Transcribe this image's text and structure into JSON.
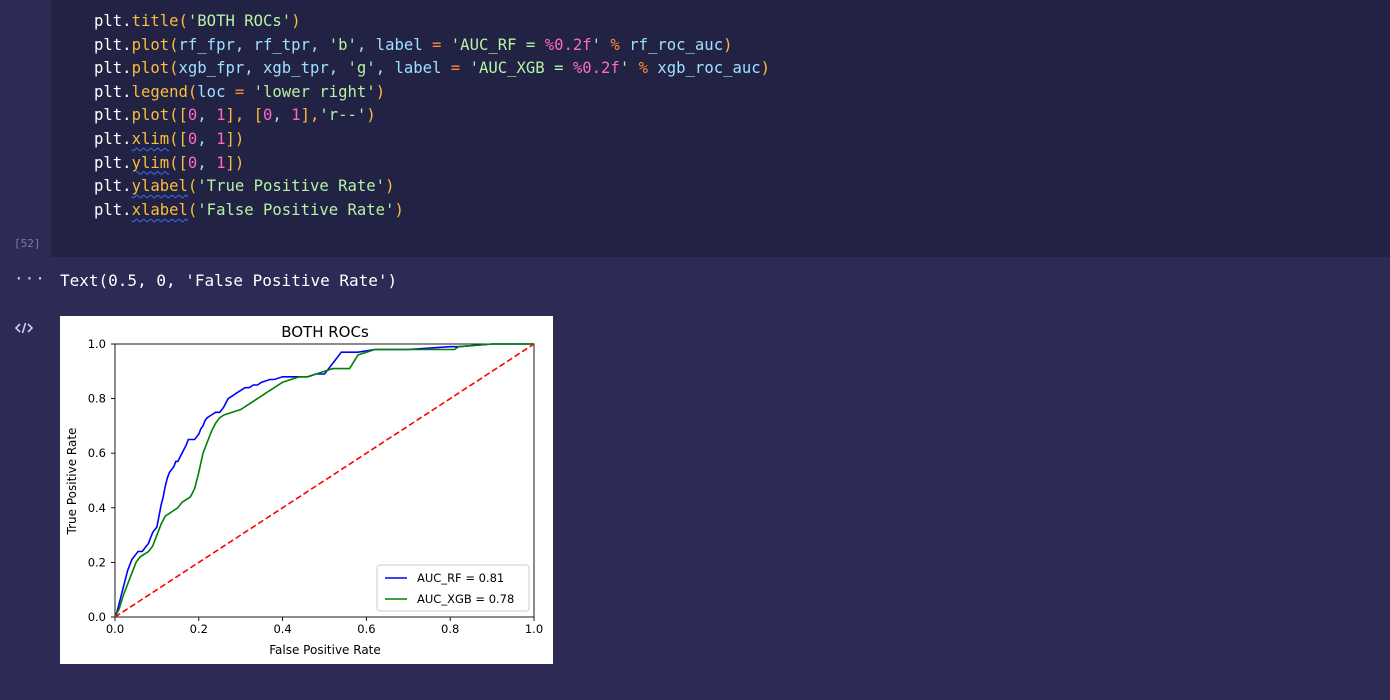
{
  "code_cell": {
    "execution_count": "[52]",
    "lines": [
      [
        {
          "t": "plt.",
          "c": "obj"
        },
        {
          "t": "title",
          "c": "fn"
        },
        {
          "t": "(",
          "c": "fn"
        },
        {
          "t": "'BOTH ROCs'",
          "c": "str"
        },
        {
          "t": ")",
          "c": "fn"
        }
      ],
      [
        {
          "t": "plt.",
          "c": "obj"
        },
        {
          "t": "plot",
          "c": "fn"
        },
        {
          "t": "(",
          "c": "fn"
        },
        {
          "t": "rf_fpr, rf_tpr, ",
          "c": "kw"
        },
        {
          "t": "'b'",
          "c": "str"
        },
        {
          "t": ", label ",
          "c": "kw"
        },
        {
          "t": "= ",
          "c": "op"
        },
        {
          "t": "'AUC_RF = ",
          "c": "str"
        },
        {
          "t": "%0.2f",
          "c": "num"
        },
        {
          "t": "' ",
          "c": "str"
        },
        {
          "t": "% ",
          "c": "op"
        },
        {
          "t": "rf_roc_auc",
          "c": "kw"
        },
        {
          "t": ")",
          "c": "fn"
        }
      ],
      [
        {
          "t": "plt.",
          "c": "obj"
        },
        {
          "t": "plot",
          "c": "fn"
        },
        {
          "t": "(",
          "c": "fn"
        },
        {
          "t": "xgb_fpr, xgb_tpr, ",
          "c": "kw"
        },
        {
          "t": "'g'",
          "c": "str"
        },
        {
          "t": ", label ",
          "c": "kw"
        },
        {
          "t": "= ",
          "c": "op"
        },
        {
          "t": "'AUC_XGB = ",
          "c": "str"
        },
        {
          "t": "%0.2f",
          "c": "num"
        },
        {
          "t": "' ",
          "c": "str"
        },
        {
          "t": "% ",
          "c": "op"
        },
        {
          "t": "xgb_roc_auc",
          "c": "kw"
        },
        {
          "t": ")",
          "c": "fn"
        }
      ],
      [
        {
          "t": "plt.",
          "c": "obj"
        },
        {
          "t": "legend",
          "c": "fn"
        },
        {
          "t": "(",
          "c": "fn"
        },
        {
          "t": "loc ",
          "c": "kw"
        },
        {
          "t": "= ",
          "c": "op"
        },
        {
          "t": "'lower right'",
          "c": "str"
        },
        {
          "t": ")",
          "c": "fn"
        }
      ],
      [
        {
          "t": "plt.",
          "c": "obj"
        },
        {
          "t": "plot",
          "c": "fn"
        },
        {
          "t": "([",
          "c": "fn"
        },
        {
          "t": "0",
          "c": "num"
        },
        {
          "t": ", ",
          "c": "kw"
        },
        {
          "t": "1",
          "c": "num"
        },
        {
          "t": "], [",
          "c": "fn"
        },
        {
          "t": "0",
          "c": "num"
        },
        {
          "t": ", ",
          "c": "kw"
        },
        {
          "t": "1",
          "c": "num"
        },
        {
          "t": "],",
          "c": "fn"
        },
        {
          "t": "'r--'",
          "c": "str"
        },
        {
          "t": ")",
          "c": "fn"
        }
      ],
      [
        {
          "t": "plt.",
          "c": "obj"
        },
        {
          "t": "xlim",
          "c": "fn",
          "squig": true
        },
        {
          "t": "([",
          "c": "fn"
        },
        {
          "t": "0",
          "c": "num"
        },
        {
          "t": ", ",
          "c": "kw"
        },
        {
          "t": "1",
          "c": "num"
        },
        {
          "t": "])",
          "c": "fn"
        }
      ],
      [
        {
          "t": "plt.",
          "c": "obj"
        },
        {
          "t": "ylim",
          "c": "fn",
          "squig": true
        },
        {
          "t": "([",
          "c": "fn"
        },
        {
          "t": "0",
          "c": "num"
        },
        {
          "t": ", ",
          "c": "kw"
        },
        {
          "t": "1",
          "c": "num"
        },
        {
          "t": "])",
          "c": "fn"
        }
      ],
      [
        {
          "t": "plt.",
          "c": "obj"
        },
        {
          "t": "ylabel",
          "c": "fn",
          "squig": true
        },
        {
          "t": "(",
          "c": "fn"
        },
        {
          "t": "'True Positive Rate'",
          "c": "str"
        },
        {
          "t": ")",
          "c": "fn"
        }
      ],
      [
        {
          "t": "plt.",
          "c": "obj"
        },
        {
          "t": "xlabel",
          "c": "fn",
          "squig": true
        },
        {
          "t": "(",
          "c": "fn"
        },
        {
          "t": "'False Positive Rate'",
          "c": "str"
        },
        {
          "t": ")",
          "c": "fn"
        }
      ]
    ]
  },
  "output": {
    "more_icon": "ellipsis-icon",
    "text": "Text(0.5, 0, 'False Positive Rate')",
    "code_toggle_icon": "code-brackets-icon"
  },
  "colors": {
    "obj": "#ffffff",
    "fn": "#fbbd3b",
    "str": "#b6f2a6",
    "num": "#ff6ac1",
    "op": "#ff8a2c",
    "kw": "#9ee1ff"
  },
  "chart_data": {
    "type": "line",
    "title": "BOTH ROCs",
    "xlabel": "False Positive Rate",
    "ylabel": "True Positive Rate",
    "xlim": [
      0,
      1
    ],
    "ylim": [
      0,
      1
    ],
    "xticks": [
      "0.0",
      "0.2",
      "0.4",
      "0.6",
      "0.8",
      "1.0"
    ],
    "yticks": [
      "0.0",
      "0.2",
      "0.4",
      "0.6",
      "0.8",
      "1.0"
    ],
    "grid": false,
    "legend": "lower right",
    "series": [
      {
        "name": "AUC_RF = 0.81",
        "color": "#0000ff",
        "style": "solid",
        "x": [
          0,
          0.005,
          0.01,
          0.015,
          0.02,
          0.025,
          0.03,
          0.035,
          0.04,
          0.045,
          0.05,
          0.055,
          0.06,
          0.065,
          0.07,
          0.08,
          0.085,
          0.09,
          0.1,
          0.105,
          0.11,
          0.115,
          0.12,
          0.125,
          0.13,
          0.14,
          0.145,
          0.15,
          0.16,
          0.17,
          0.175,
          0.18,
          0.19,
          0.2,
          0.205,
          0.21,
          0.215,
          0.22,
          0.23,
          0.24,
          0.25,
          0.26,
          0.27,
          0.28,
          0.29,
          0.3,
          0.31,
          0.32,
          0.33,
          0.34,
          0.35,
          0.37,
          0.38,
          0.4,
          0.42,
          0.44,
          0.46,
          0.48,
          0.5,
          0.52,
          0.53,
          0.54,
          0.56,
          0.58,
          0.62,
          0.66,
          0.7,
          0.8,
          0.82,
          0.9,
          1.0
        ],
        "y": [
          0,
          0.02,
          0.05,
          0.08,
          0.11,
          0.14,
          0.17,
          0.19,
          0.21,
          0.22,
          0.23,
          0.24,
          0.24,
          0.24,
          0.25,
          0.27,
          0.29,
          0.31,
          0.33,
          0.37,
          0.41,
          0.44,
          0.48,
          0.51,
          0.53,
          0.55,
          0.57,
          0.57,
          0.6,
          0.63,
          0.65,
          0.65,
          0.65,
          0.67,
          0.69,
          0.7,
          0.72,
          0.73,
          0.74,
          0.75,
          0.75,
          0.77,
          0.8,
          0.81,
          0.82,
          0.83,
          0.84,
          0.84,
          0.85,
          0.85,
          0.86,
          0.87,
          0.87,
          0.88,
          0.88,
          0.88,
          0.88,
          0.89,
          0.89,
          0.93,
          0.95,
          0.97,
          0.97,
          0.97,
          0.98,
          0.98,
          0.98,
          0.99,
          0.99,
          1.0,
          1.0
        ]
      },
      {
        "name": "AUC_XGB = 0.78",
        "color": "#008000",
        "style": "solid",
        "x": [
          0,
          0.01,
          0.02,
          0.03,
          0.04,
          0.05,
          0.06,
          0.07,
          0.08,
          0.09,
          0.1,
          0.11,
          0.12,
          0.13,
          0.14,
          0.15,
          0.16,
          0.17,
          0.18,
          0.19,
          0.2,
          0.21,
          0.22,
          0.23,
          0.24,
          0.25,
          0.26,
          0.28,
          0.3,
          0.32,
          0.34,
          0.35,
          0.36,
          0.38,
          0.4,
          0.42,
          0.44,
          0.46,
          0.48,
          0.5,
          0.52,
          0.54,
          0.56,
          0.58,
          0.6,
          0.62,
          0.64,
          0.66,
          0.7,
          0.74,
          0.78,
          0.81,
          0.82,
          0.9,
          1.0
        ],
        "y": [
          0,
          0.03,
          0.08,
          0.12,
          0.16,
          0.2,
          0.22,
          0.23,
          0.24,
          0.26,
          0.3,
          0.34,
          0.37,
          0.38,
          0.39,
          0.4,
          0.42,
          0.43,
          0.44,
          0.47,
          0.53,
          0.6,
          0.64,
          0.68,
          0.71,
          0.73,
          0.74,
          0.75,
          0.76,
          0.78,
          0.8,
          0.81,
          0.82,
          0.84,
          0.86,
          0.87,
          0.88,
          0.88,
          0.89,
          0.9,
          0.91,
          0.91,
          0.91,
          0.96,
          0.97,
          0.98,
          0.98,
          0.98,
          0.98,
          0.98,
          0.98,
          0.98,
          0.99,
          1.0,
          1.0
        ]
      },
      {
        "name": "",
        "color": "#ff0000",
        "style": "dashed",
        "x": [
          0,
          1
        ],
        "y": [
          0,
          1
        ]
      }
    ]
  }
}
